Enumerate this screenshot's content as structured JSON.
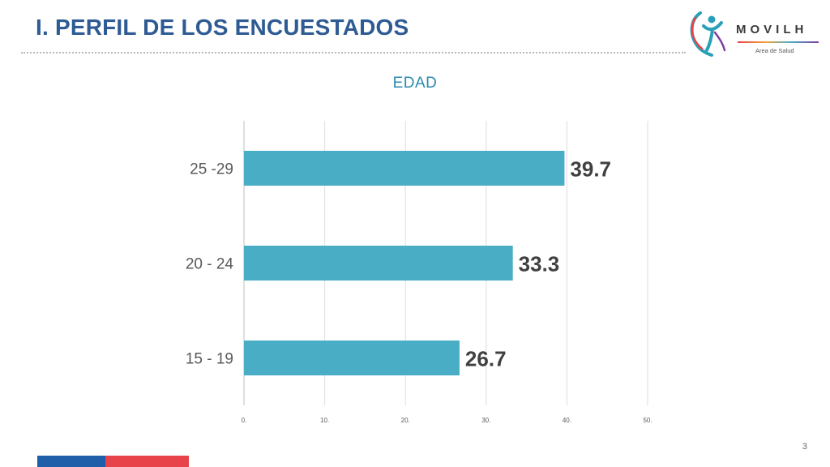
{
  "slide": {
    "title": "I. PERFIL DE LOS ENCUESTADOS",
    "page_number": "3"
  },
  "logo": {
    "word": "MOVILH",
    "subtitle": "Area de Salud",
    "icon": "movilh-figure-icon"
  },
  "colors": {
    "title": "#2e5b94",
    "bar": "#4aadc6",
    "value_label": "#404040",
    "footer_blue": "#1f5ea8",
    "footer_red": "#e8424a"
  },
  "chart_data": {
    "type": "bar",
    "orientation": "horizontal",
    "title": "EDAD",
    "categories": [
      "25 -29",
      "20 - 24",
      "15 - 19"
    ],
    "values": [
      39.7,
      33.3,
      26.7
    ],
    "value_labels": [
      "39.7",
      "33.3",
      "26.7"
    ],
    "xticks": [
      0,
      10,
      20,
      30,
      40,
      50
    ],
    "xtick_labels": [
      "0.",
      "10.",
      "20.",
      "30.",
      "40.",
      "50."
    ],
    "xlim": [
      0,
      50
    ],
    "xlabel": "",
    "ylabel": "",
    "grid": true,
    "legend": "none"
  }
}
